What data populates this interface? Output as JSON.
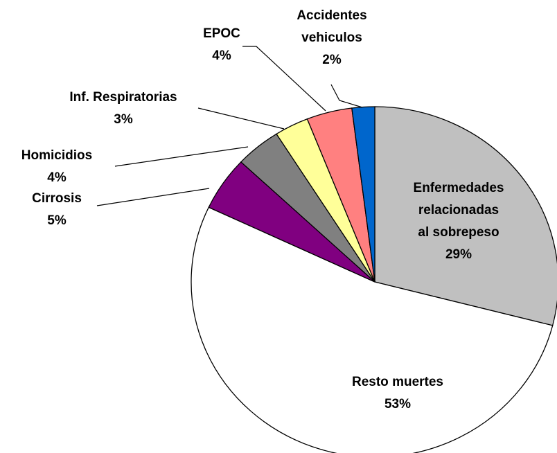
{
  "chart_data": {
    "type": "pie",
    "categories": [
      "Enfermedades relacionadas al sobrepeso",
      "Resto muertes",
      "Cirrosis",
      "Homicidios",
      "Inf. Respiratorias",
      "EPOC",
      "Accidentes vehiculos"
    ],
    "values": [
      29,
      53,
      5,
      4,
      3,
      4,
      2
    ],
    "value_labels": [
      "29%",
      "53%",
      "5%",
      "4%",
      "3%",
      "4%",
      "2%"
    ],
    "colors": [
      "#c0c0c0",
      "#ffffff",
      "#800080",
      "#808080",
      "#ffff99",
      "#ff8080",
      "#0066cc"
    ]
  }
}
